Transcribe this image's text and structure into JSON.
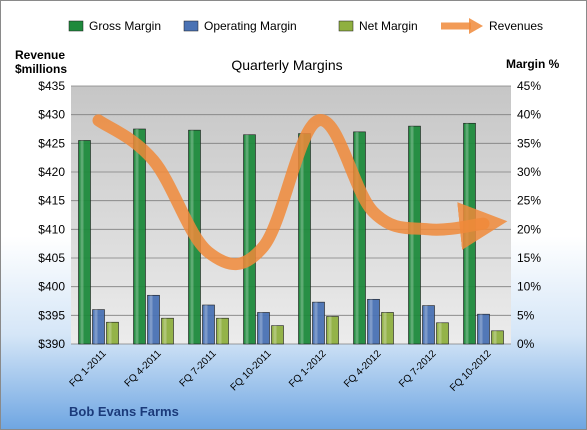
{
  "chart_data": {
    "type": "bar",
    "title": "Quarterly Margins",
    "company": "Bob Evans Farms",
    "ylabel_left": [
      "Revenue",
      "$millions"
    ],
    "ylabel_right": "Margin %",
    "categories": [
      "FQ 1-2011",
      "FQ 4-2011",
      "FQ 7-2011",
      "FQ 10-2011",
      "FQ 1-2012",
      "FQ 4-2012",
      "FQ 7-2012",
      "FQ 10-2012"
    ],
    "left_axis": {
      "min": 390,
      "max": 435,
      "step": 5,
      "format": "$"
    },
    "right_axis": {
      "min": 0,
      "max": 45,
      "step": 5,
      "format": "%"
    },
    "series": [
      {
        "name": "Gross Margin",
        "axis": "right",
        "color": "#1e8a3c",
        "values": [
          35.5,
          37.5,
          37.3,
          36.5,
          36.7,
          37.0,
          38.0,
          38.5
        ]
      },
      {
        "name": "Operating Margin",
        "axis": "right",
        "color": "#4a72b4",
        "values": [
          6.0,
          8.5,
          6.8,
          5.5,
          7.3,
          7.8,
          6.7,
          5.2
        ]
      },
      {
        "name": "Net Margin",
        "axis": "right",
        "color": "#8fb040",
        "values": [
          3.8,
          4.5,
          4.5,
          3.2,
          4.8,
          5.5,
          3.7,
          2.3
        ]
      },
      {
        "name": "Revenues",
        "axis": "left",
        "type": "line",
        "color": "#f08a3a",
        "values": [
          429,
          422,
          406,
          407,
          429,
          413,
          410,
          411
        ]
      }
    ],
    "grid": true,
    "legend_position": "top"
  }
}
